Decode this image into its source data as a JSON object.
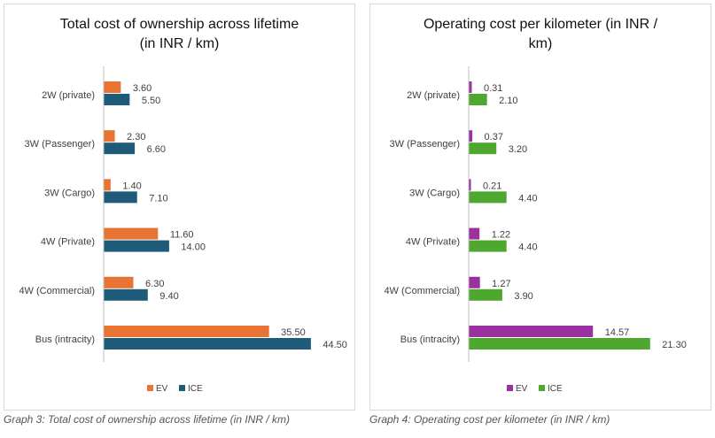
{
  "chart_data": [
    {
      "type": "bar",
      "orientation": "horizontal",
      "title": "Total cost of ownership across lifetime (in INR / km)",
      "title_lines": [
        "Total cost of ownership across lifetime",
        "(in INR / km)"
      ],
      "categories": [
        "2W (private)",
        "3W (Passenger)",
        "3W (Cargo)",
        "4W (Private)",
        "4W (Commercial)",
        "Bus (intracity)"
      ],
      "series": [
        {
          "name": "EV",
          "color": "#E87332",
          "values": [
            3.6,
            2.3,
            1.4,
            11.6,
            6.3,
            35.5
          ],
          "labels": [
            "3.60",
            "2.30",
            "1.40",
            "11.60",
            "6.30",
            "35.50"
          ]
        },
        {
          "name": "ICE",
          "color": "#1E5B79",
          "values": [
            5.5,
            6.6,
            7.1,
            14.0,
            9.4,
            44.5
          ],
          "labels": [
            "5.50",
            "6.60",
            "7.10",
            "14.00",
            "9.40",
            "44.50"
          ]
        }
      ],
      "xlim": [
        0,
        45
      ],
      "grid": false,
      "legend_position": "bottom-center",
      "caption": "Graph 3: Total cost of ownership across lifetime (in INR / km)"
    },
    {
      "type": "bar",
      "orientation": "horizontal",
      "title": "Operating cost per kilometer (in INR / km)",
      "title_lines": [
        "Operating cost per kilometer (in INR /",
        "km)"
      ],
      "categories": [
        "2W (private)",
        "3W (Passenger)",
        "3W (Cargo)",
        "4W (Private)",
        "4W (Commercial)",
        "Bus (intracity)"
      ],
      "series": [
        {
          "name": "EV",
          "color": "#9B30A0",
          "values": [
            0.31,
            0.37,
            0.21,
            1.22,
            1.27,
            14.57
          ],
          "labels": [
            "0.31",
            "0.37",
            "0.21",
            "1.22",
            "1.27",
            "14.57"
          ]
        },
        {
          "name": "ICE",
          "color": "#4EA72E",
          "values": [
            2.1,
            3.2,
            4.4,
            4.4,
            3.9,
            21.3
          ],
          "labels": [
            "2.10",
            "3.20",
            "4.40",
            "4.40",
            "3.90",
            "21.30"
          ]
        }
      ],
      "xlim": [
        0,
        22
      ],
      "grid": false,
      "legend_position": "bottom-center",
      "caption": "Graph 4: Operating cost per kilometer (in INR / km)"
    }
  ]
}
